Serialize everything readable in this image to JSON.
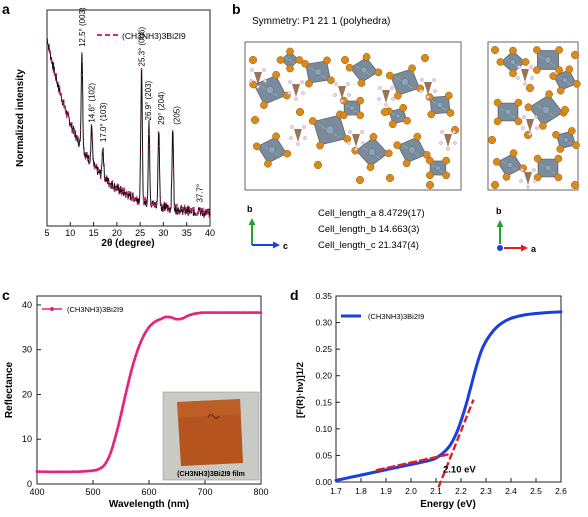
{
  "panels": {
    "a": {
      "letter": "a"
    },
    "b": {
      "letter": "b",
      "symmetry": "Symmetry: P1 21 1 (polyhedra)",
      "cell": [
        "Cell_length_a 8.4729(17)",
        "Cell_length_b 14.663(3)",
        "Cell_length_c 21.347(4)"
      ],
      "axes_left": {
        "up": "b",
        "right": "c"
      },
      "axes_right": {
        "up": "b",
        "right": "a"
      }
    },
    "c": {
      "letter": "c",
      "inset_caption": "(CH3NH3)3Bi2I9 film"
    },
    "d": {
      "letter": "d",
      "bandgap_label": "2.10 eV"
    }
  },
  "colors": {
    "magenta": "#e3227c",
    "blue": "#1b3ee0",
    "red": "#e01e25",
    "black": "#111111",
    "iodine": "#d98a1a",
    "octa": "#6f8293",
    "ch": "#8a5a3a"
  },
  "chart_data": [
    {
      "panel": "a",
      "type": "line",
      "xlabel": "2θ (degree)",
      "ylabel": "Normalized intensity",
      "xlim": [
        5,
        40
      ],
      "ylim": [
        0,
        1
      ],
      "xticks": [
        5,
        10,
        15,
        20,
        25,
        30,
        35,
        40
      ],
      "legend": {
        "label": "(CH3NH3)3Bi2I9",
        "position": "top-right"
      },
      "peaks": [
        {
          "x": 12.5,
          "y": 0.81,
          "label": "12.5°",
          "hkl": "(003)"
        },
        {
          "x": 14.6,
          "y": 0.46,
          "label": "14.6°",
          "hkl": "(102)"
        },
        {
          "x": 17.0,
          "y": 0.37,
          "label": "17.0°",
          "hkl": "(103)"
        },
        {
          "x": 25.3,
          "y": 0.72,
          "label": "25.3°",
          "hkl": "(006)"
        },
        {
          "x": 26.9,
          "y": 0.47,
          "label": "26.9°",
          "hkl": "(203)"
        },
        {
          "x": 29.0,
          "y": 0.45,
          "label": "29°",
          "hkl": "(204)"
        },
        {
          "x": 32.0,
          "y": 0.45,
          "label": "",
          "hkl": "(205)"
        },
        {
          "x": 37.7,
          "y": 0.09,
          "label": "37.7°",
          "hkl": ""
        }
      ]
    },
    {
      "panel": "c",
      "type": "line",
      "xlabel": "Wavelength (nm)",
      "ylabel": "Reflectance",
      "xlim": [
        400,
        800
      ],
      "ylim": [
        0,
        42
      ],
      "xticks": [
        400,
        500,
        600,
        700,
        800
      ],
      "yticks": [
        0,
        10,
        20,
        30,
        40
      ],
      "legend": {
        "label": "(CH3NH3)3Bi2I9",
        "position": "top-left"
      },
      "series": [
        {
          "x": [
            400,
            420,
            440,
            460,
            480,
            500,
            510,
            520,
            530,
            540,
            550,
            560,
            570,
            580,
            590,
            600,
            610,
            620,
            630,
            640,
            650,
            660,
            670,
            680,
            690,
            700,
            720,
            740,
            760,
            780,
            800
          ],
          "values": [
            2.8,
            2.7,
            2.7,
            2.7,
            2.8,
            3.0,
            3.3,
            4.2,
            6.5,
            10.5,
            15.5,
            21.0,
            26.0,
            30.0,
            33.0,
            35.0,
            36.2,
            36.8,
            37.3,
            37.2,
            36.8,
            37.0,
            37.6,
            38.0,
            38.2,
            38.3,
            38.3,
            38.3,
            38.3,
            38.3,
            38.3
          ]
        }
      ]
    },
    {
      "panel": "d",
      "type": "line",
      "xlabel": "Energy (eV)",
      "ylabel": "[F(R)·hν)]1/2",
      "xlim": [
        1.7,
        2.6
      ],
      "ylim": [
        0,
        0.35
      ],
      "xticks": [
        1.7,
        1.8,
        1.9,
        2.0,
        2.1,
        2.2,
        2.3,
        2.4,
        2.5,
        2.6
      ],
      "yticks": [
        0.0,
        0.05,
        0.1,
        0.15,
        0.2,
        0.25,
        0.3,
        0.35
      ],
      "legend": {
        "label": "(CH3NH3)3Bi2I9",
        "position": "top-left"
      },
      "series": [
        {
          "x": [
            1.7,
            1.75,
            1.8,
            1.85,
            1.9,
            1.95,
            2.0,
            2.05,
            2.1,
            2.15,
            2.18,
            2.2,
            2.22,
            2.24,
            2.26,
            2.28,
            2.3,
            2.33,
            2.36,
            2.4,
            2.45,
            2.5,
            2.55,
            2.6
          ],
          "values": [
            0.003,
            0.008,
            0.013,
            0.018,
            0.023,
            0.028,
            0.033,
            0.038,
            0.045,
            0.065,
            0.09,
            0.115,
            0.145,
            0.18,
            0.215,
            0.245,
            0.265,
            0.285,
            0.298,
            0.308,
            0.314,
            0.317,
            0.319,
            0.32
          ]
        }
      ],
      "fits": [
        {
          "x": [
            1.86,
            2.15
          ],
          "y": [
            0.022,
            0.052
          ]
        },
        {
          "x": [
            2.11,
            2.25
          ],
          "y": [
            -0.01,
            0.155
          ]
        }
      ],
      "bandgap_eV": 2.1
    }
  ]
}
